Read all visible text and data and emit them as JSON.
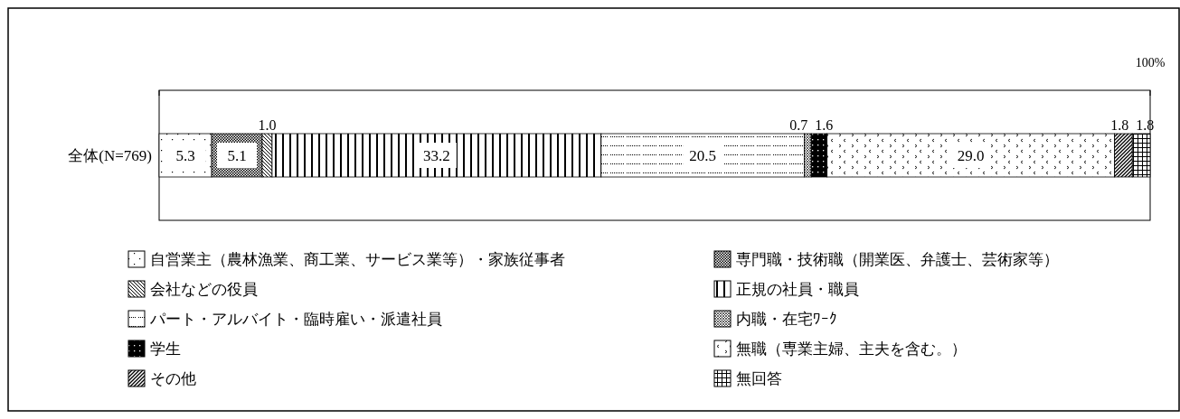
{
  "chart_data": {
    "type": "bar",
    "orientation": "horizontal",
    "stacked": true,
    "categories": [
      "全体(N=769)"
    ],
    "xlim": [
      0,
      100
    ],
    "xticks": [
      {
        "value": 0,
        "label": null
      },
      {
        "value": 100,
        "label": "100%"
      }
    ],
    "series": [
      {
        "name": "自営業主（農林漁業、商工業、サービス業等）・家族従事者",
        "color": "#000000",
        "values": [
          5.3
        ],
        "value_labels": [
          "5.3"
        ]
      },
      {
        "name": "専門職・技術職（開業医、弁護士、芸術家等）",
        "color": "#000000",
        "values": [
          5.1
        ],
        "value_labels": [
          "5.1"
        ]
      },
      {
        "name": "会社などの役員",
        "color": "#000000",
        "values": [
          1.0
        ],
        "value_labels": [
          "1.0"
        ]
      },
      {
        "name": "正規の社員・職員",
        "color": "#000000",
        "values": [
          33.2
        ],
        "value_labels": [
          "33.2"
        ]
      },
      {
        "name": "パート・アルバイト・臨時雇い・派遣社員",
        "color": "#000000",
        "values": [
          20.5
        ],
        "value_labels": [
          "20.5"
        ]
      },
      {
        "name": "内職・在宅ﾜｰｸ",
        "color": "#000000",
        "values": [
          0.7
        ],
        "value_labels": [
          "0.7"
        ]
      },
      {
        "name": "学生",
        "color": "#000000",
        "values": [
          1.6
        ],
        "value_labels": [
          "1.6"
        ]
      },
      {
        "name": "無職（専業主婦、主夫を含む。）",
        "color": "#000000",
        "values": [
          29.0
        ],
        "value_labels": [
          "29.0"
        ]
      },
      {
        "name": "その他",
        "color": "#000000",
        "values": [
          1.8
        ],
        "value_labels": [
          "1.8"
        ]
      },
      {
        "name": "無回答",
        "color": "#000000",
        "values": [
          1.8
        ],
        "value_labels": [
          "1.8"
        ]
      }
    ],
    "legend": "bottom"
  }
}
